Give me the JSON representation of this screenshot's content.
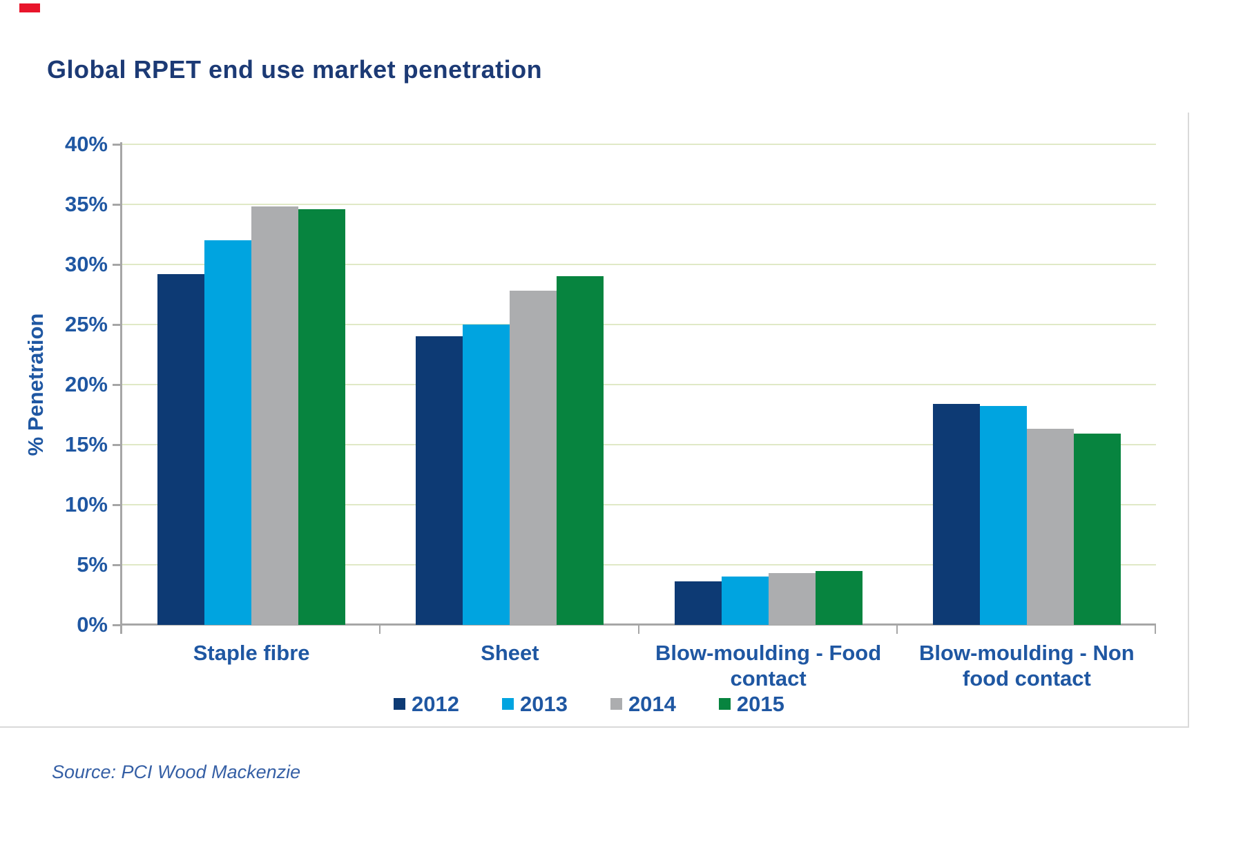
{
  "page": {
    "red_mark_color": "#e8152b",
    "background": "#ffffff"
  },
  "title": "Global RPET end use market penetration",
  "source_note": "Source: PCI Wood Mackenzie",
  "colors": {
    "title_text": "#1c3a75",
    "axis_text": "#1f57a2",
    "source_text": "#355fa5",
    "gridline": "#e0e9c6",
    "axis_line": "#a6a6a6",
    "frame_border": "#d9d9d9"
  },
  "chart_data": {
    "type": "bar",
    "title": "Global RPET end use market penetration",
    "xlabel": "",
    "ylabel": "% Penetration",
    "ylim": [
      0,
      40
    ],
    "ytick_step": 5,
    "ytick_labels": [
      "0%",
      "5%",
      "10%",
      "15%",
      "20%",
      "25%",
      "30%",
      "35%",
      "40%"
    ],
    "grid": true,
    "legend_position": "bottom",
    "categories": [
      "Staple fibre",
      "Sheet",
      "Blow-moulding - Food contact",
      "Blow-moulding - Non food contact"
    ],
    "category_label_lines": [
      [
        "Staple fibre"
      ],
      [
        "Sheet"
      ],
      [
        "Blow-moulding - Food",
        "contact"
      ],
      [
        "Blow-moulding - Non",
        "food contact"
      ]
    ],
    "series": [
      {
        "name": "2012",
        "color": "#0d3a74",
        "values": [
          29.2,
          24.0,
          3.6,
          18.4
        ]
      },
      {
        "name": "2013",
        "color": "#00a4e0",
        "values": [
          32.0,
          25.0,
          4.0,
          18.2
        ]
      },
      {
        "name": "2014",
        "color": "#acadaf",
        "values": [
          34.8,
          27.8,
          4.3,
          16.3
        ]
      },
      {
        "name": "2015",
        "color": "#07843f",
        "values": [
          34.6,
          29.0,
          4.5,
          15.9
        ]
      }
    ],
    "source_note": "Source: PCI Wood Mackenzie"
  }
}
